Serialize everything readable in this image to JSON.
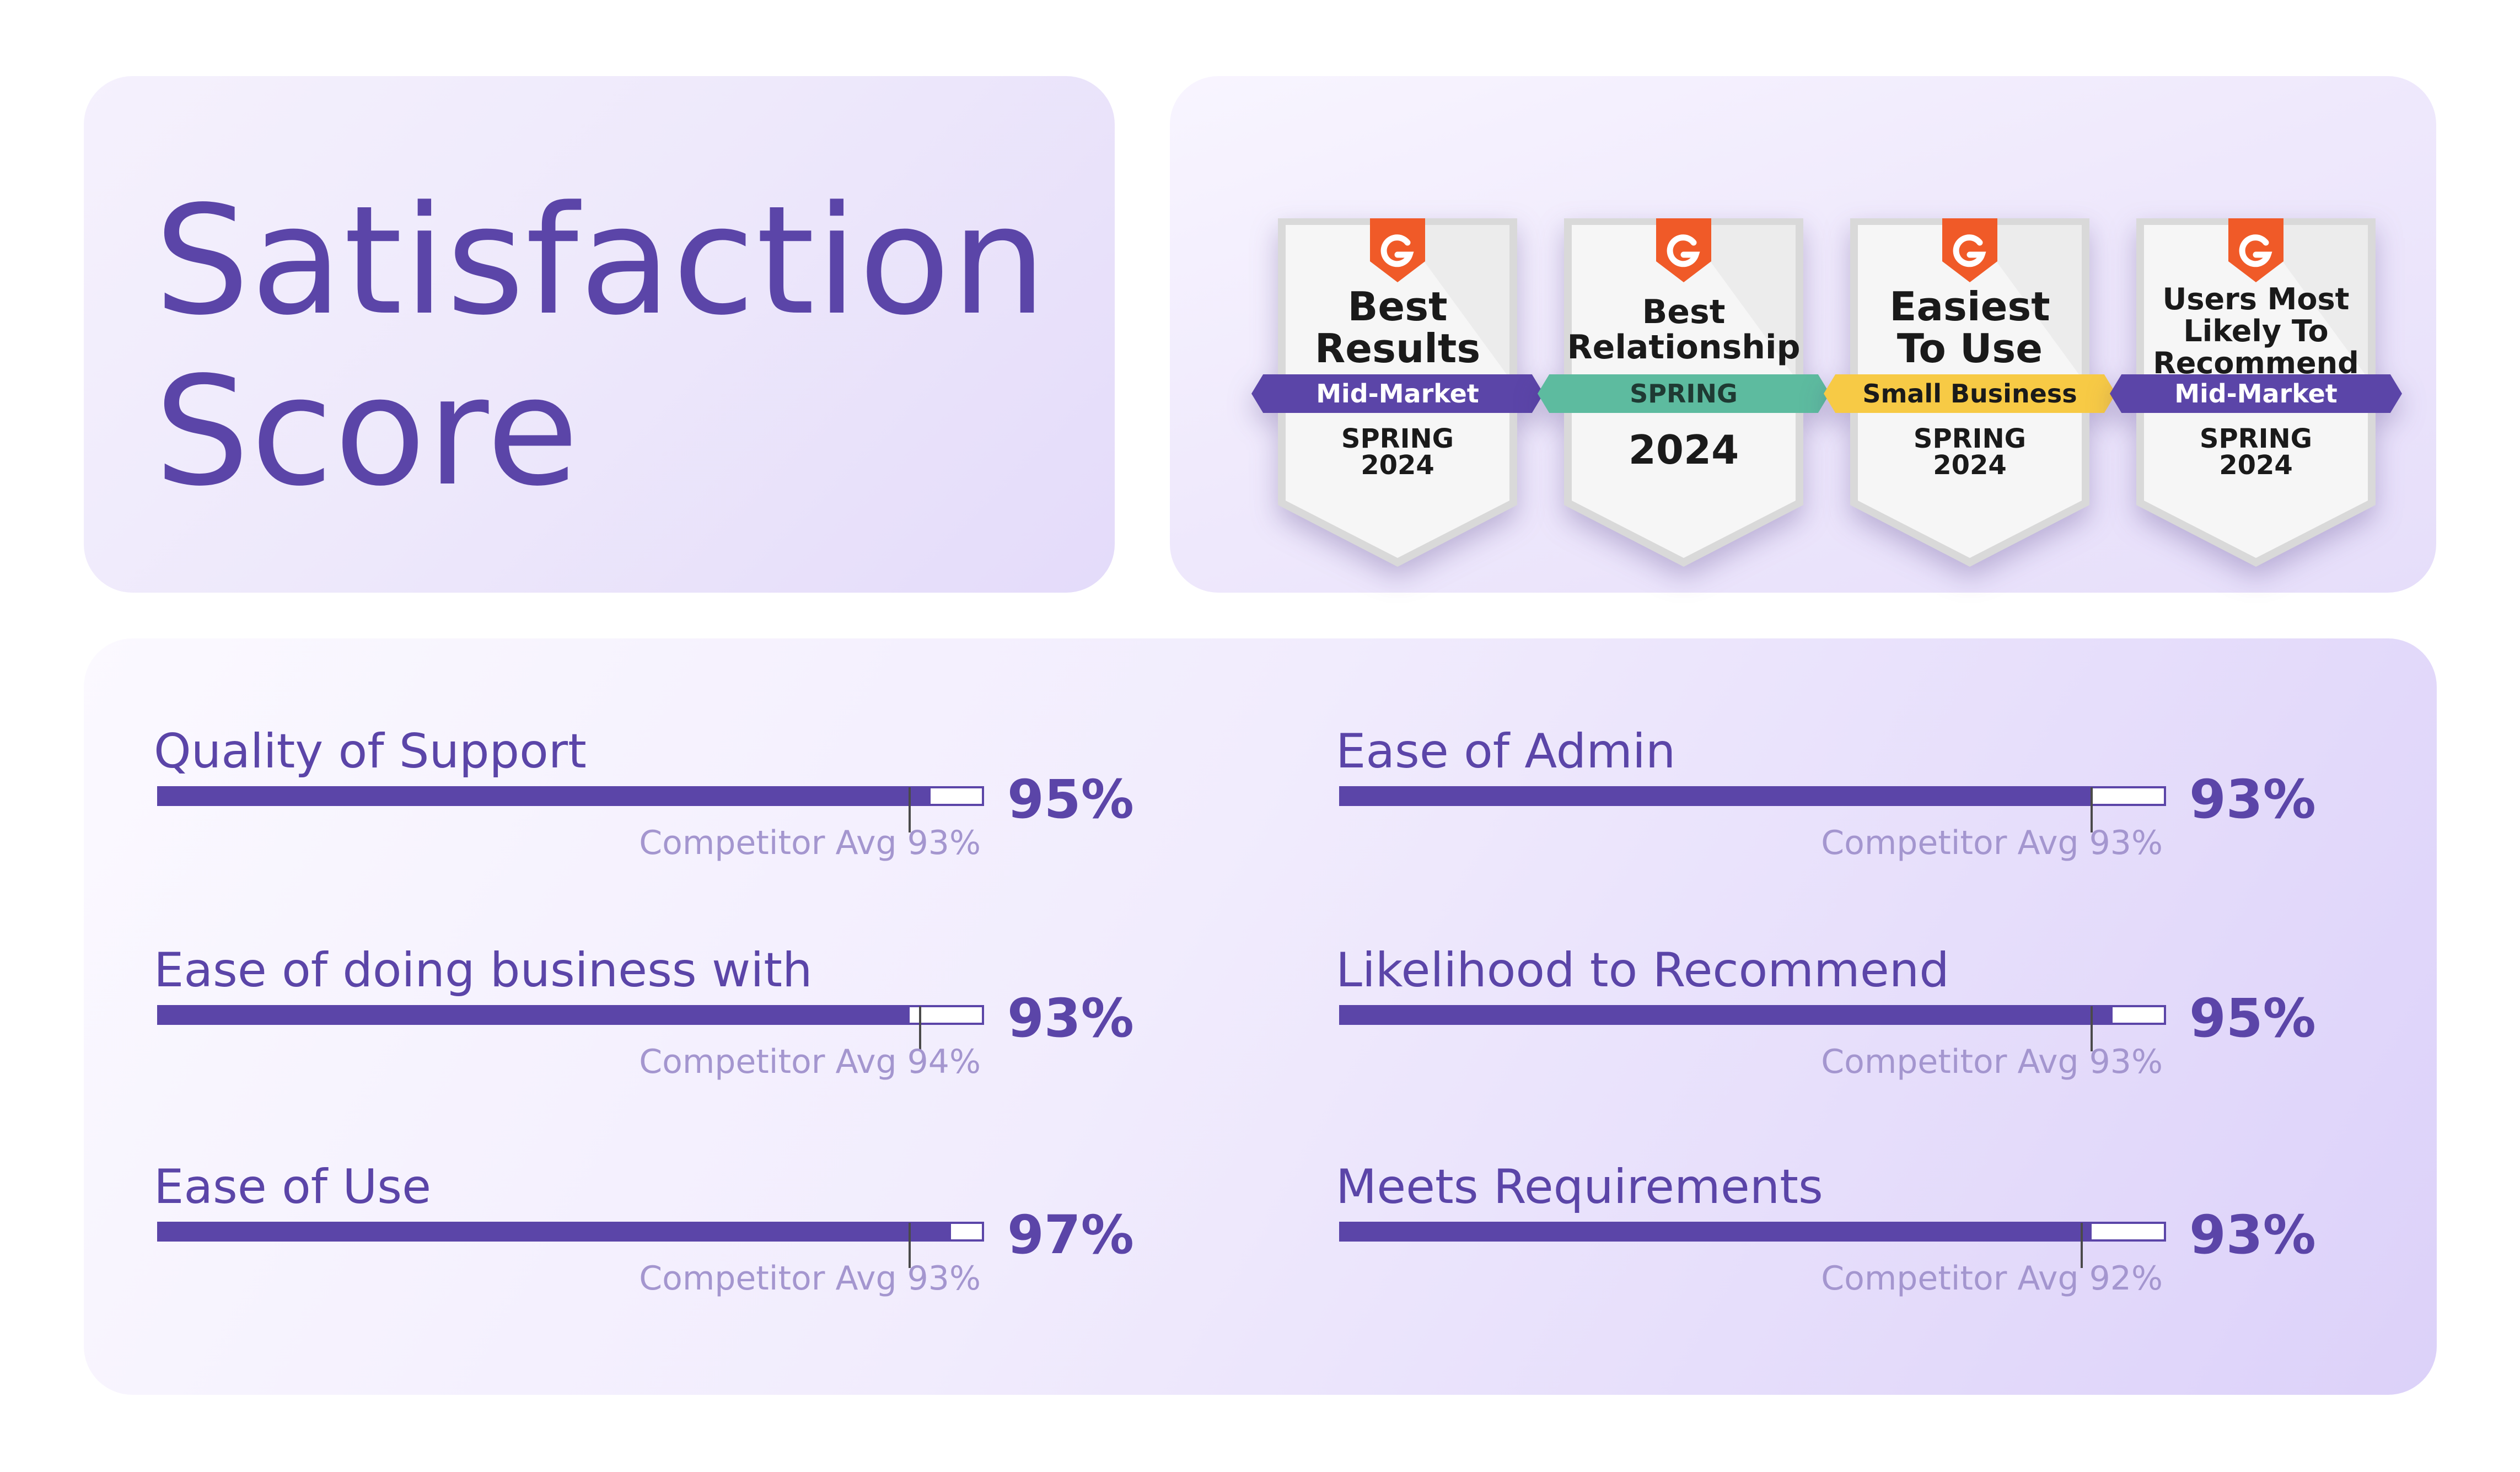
{
  "title": {
    "line1": "Satisfaction",
    "line2": "Score"
  },
  "colors": {
    "brand": "#5b45a8",
    "midmarket_ribbon": "#5b45a8",
    "spring_ribbon": "#5dbb9f",
    "smallbiz_ribbon": "#f7ca45",
    "g2_logo": "#f05a28",
    "competitor_text": "#a496cf"
  },
  "badges": [
    {
      "logo": "g2-icon",
      "lines": [
        "Best",
        "Results"
      ],
      "ribbon": "Mid-Market",
      "ribbon_color": "midmarket",
      "season": "SPRING",
      "year": "2024"
    },
    {
      "logo": "g2-icon",
      "lines": [
        "Best",
        "Relationship"
      ],
      "ribbon": "SPRING",
      "ribbon_color": "spring",
      "season": "",
      "year": "2024"
    },
    {
      "logo": "g2-icon",
      "lines": [
        "Easiest",
        "To Use"
      ],
      "ribbon": "Small Business",
      "ribbon_color": "smallbiz",
      "season": "SPRING",
      "year": "2024"
    },
    {
      "logo": "g2-icon",
      "lines": [
        "Users Most",
        "Likely To",
        "Recommend"
      ],
      "ribbon": "Mid-Market",
      "ribbon_color": "midmarket",
      "season": "SPRING",
      "year": "2024"
    }
  ],
  "chart_data": {
    "type": "bar",
    "orientation": "horizontal",
    "unit": "%",
    "xlim": [
      0,
      100
    ],
    "metrics": [
      {
        "label": "Quality of Support",
        "value": 95,
        "value_text": "95%",
        "competitor": 93,
        "competitor_text": "Competitor Avg 93%"
      },
      {
        "label": "Ease of doing business with",
        "value": 93,
        "value_text": "93%",
        "competitor": 94,
        "competitor_text": "Competitor Avg 94%"
      },
      {
        "label": "Ease of Use",
        "value": 97,
        "value_text": "97%",
        "competitor": 93,
        "competitor_text": "Competitor Avg 93%"
      },
      {
        "label": "Ease of Admin",
        "value": 93,
        "value_text": "93%",
        "competitor": 93,
        "competitor_text": "Competitor Avg 93%"
      },
      {
        "label": "Likelihood to Recommend",
        "value": 95,
        "value_text": "95%",
        "competitor": 93,
        "competitor_text": "Competitor Avg 93%"
      },
      {
        "label": "Meets Requirements",
        "value": 93,
        "value_text": "93%",
        "competitor": 92,
        "competitor_text": "Competitor Avg 92%"
      }
    ]
  }
}
